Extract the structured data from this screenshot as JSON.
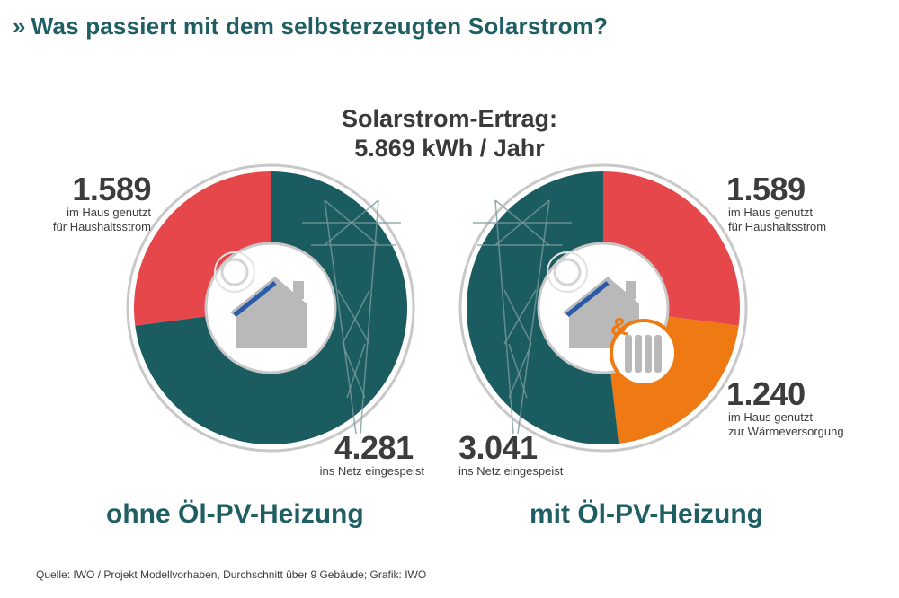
{
  "header": {
    "chevron": "»",
    "title": "Was passiert mit dem selbsterzeugten Solarstrom?"
  },
  "center": {
    "line1": "Solarstrom-Ertrag:",
    "line2": "5.869 kWh / Jahr"
  },
  "colors": {
    "teal": "#1b5c61",
    "red": "#e5474a",
    "orange": "#ef7a14",
    "ring": "#c8c8c8",
    "house": "#b9b9b9",
    "panel": "#2a5aa8",
    "title": "#1f5f63"
  },
  "chart_data": [
    {
      "type": "pie",
      "subtitle": "ohne Öl-PV-Heizung",
      "total": 5869,
      "slices": [
        {
          "value": 1589,
          "value_label": "1.589",
          "desc1": "im Haus genutzt",
          "desc2": "für Haushaltsstrom",
          "color": "#e5474a"
        },
        {
          "value": 4281,
          "value_label": "4.281",
          "desc1": "ins Netz eingespeist",
          "desc2": "",
          "color": "#1b5c61"
        }
      ]
    },
    {
      "type": "pie",
      "subtitle": "mit Öl-PV-Heizung",
      "total": 5869,
      "slices": [
        {
          "value": 1589,
          "value_label": "1.589",
          "desc1": "im Haus genutzt",
          "desc2": "für Haushaltsstrom",
          "color": "#e5474a"
        },
        {
          "value": 1240,
          "value_label": "1.240",
          "desc1": "im Haus genutzt",
          "desc2": "zur Wärmeversorgung",
          "color": "#ef7a14"
        },
        {
          "value": 3041,
          "value_label": "3.041",
          "desc1": "ins Netz eingespeist",
          "desc2": "",
          "color": "#1b5c61"
        }
      ]
    }
  ],
  "footer": {
    "source": "Quelle: IWO / Projekt Modellvorhaben, Durchschnitt über 9 Gebäude; Grafik: IWO"
  }
}
